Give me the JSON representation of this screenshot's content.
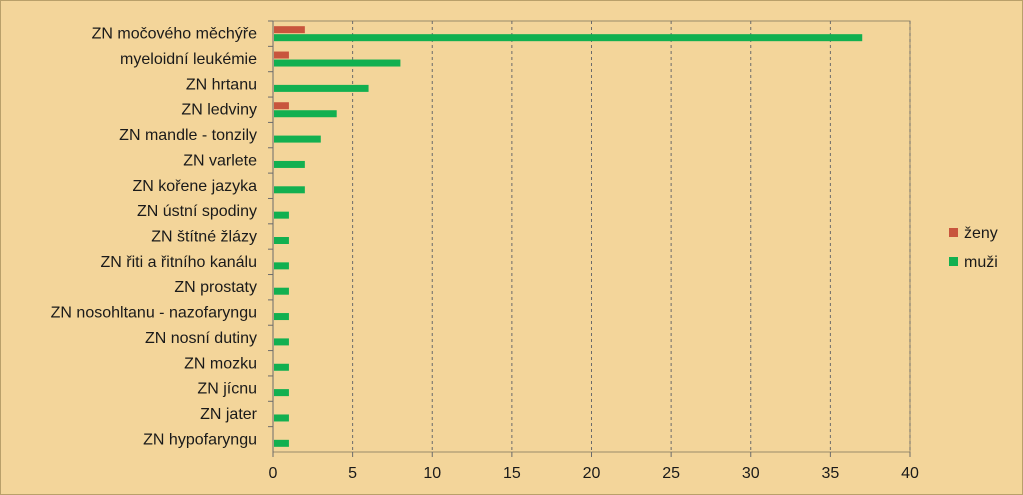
{
  "chart_data": {
    "type": "bar",
    "orientation": "horizontal",
    "categories": [
      "ZN močového měchýře",
      "myeloidní leukémie",
      "ZN hrtanu",
      "ZN ledviny",
      "ZN mandle - tonzily",
      "ZN varlete",
      "ZN kořene jazyka",
      "ZN ústní spodiny",
      "ZN štítné žlázy",
      "ZN řiti a řitního kanálu",
      "ZN prostaty",
      "ZN nosohltanu - nazofaryngu",
      "ZN nosní dutiny",
      "ZN mozku",
      "ZN jícnu",
      "ZN jater",
      "ZN hypofaryngu"
    ],
    "series": [
      {
        "name": "ženy",
        "color": "#c8553d",
        "values": [
          2,
          1,
          0,
          1,
          0,
          0,
          0,
          0,
          0,
          0,
          0,
          0,
          0,
          0,
          0,
          0,
          0
        ]
      },
      {
        "name": "muži",
        "color": "#12b050",
        "values": [
          37,
          8,
          6,
          4,
          3,
          2,
          2,
          1,
          1,
          1,
          1,
          1,
          1,
          1,
          1,
          1,
          1
        ]
      }
    ],
    "xlim": [
      0,
      40
    ],
    "xticks": [
      0,
      5,
      10,
      15,
      20,
      25,
      30,
      35,
      40
    ],
    "grid": "vertical dashed",
    "legend_position": "right",
    "background_color": "#f3d59a"
  }
}
